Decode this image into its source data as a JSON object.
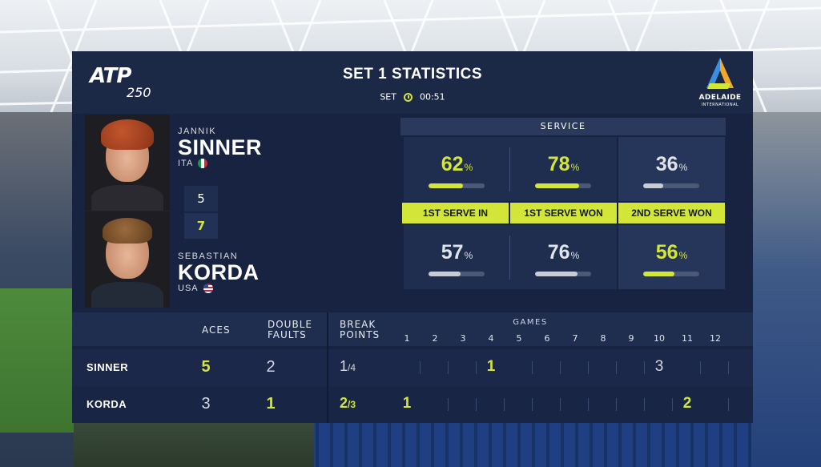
{
  "header": {
    "event_logo": "ATP",
    "event_level": "250",
    "title": "SET 1 STATISTICS",
    "set_label": "SET",
    "set_time": "00:51",
    "clock_icon": "clock-icon",
    "tournament_logo": "ADELAIDE",
    "tournament_sub": "INTERNATIONAL"
  },
  "players": [
    {
      "first": "JANNIK",
      "last": "SINNER",
      "country": "ITA",
      "flag": "italy-flag-icon",
      "set_score": "5"
    },
    {
      "first": "SEBASTIAN",
      "last": "KORDA",
      "country": "USA",
      "flag": "usa-flag-icon",
      "set_score": "7"
    }
  ],
  "service": {
    "header": "SERVICE",
    "labels": [
      "1ST SERVE IN",
      "1ST SERVE WON",
      "2ND SERVE WON"
    ],
    "player1": [
      {
        "value": "62",
        "unit": "%",
        "fraction": 0.62,
        "highlight": true
      },
      {
        "value": "78",
        "unit": "%",
        "fraction": 0.78,
        "highlight": true
      },
      {
        "value": "36",
        "unit": "%",
        "fraction": 0.36,
        "highlight": false
      }
    ],
    "player2": [
      {
        "value": "57",
        "unit": "%",
        "fraction": 0.57,
        "highlight": false
      },
      {
        "value": "76",
        "unit": "%",
        "fraction": 0.76,
        "highlight": false
      },
      {
        "value": "56",
        "unit": "%",
        "fraction": 0.56,
        "highlight": true
      }
    ]
  },
  "summary": {
    "aces_label": "ACES",
    "double_faults_label": [
      "DOUBLE",
      "FAULTS"
    ],
    "break_points_label": [
      "BREAK",
      "POINTS"
    ],
    "games_label": "GAMES",
    "game_numbers": [
      "1",
      "2",
      "3",
      "4",
      "5",
      "6",
      "7",
      "8",
      "9",
      "10",
      "11",
      "12"
    ],
    "rows": [
      {
        "name": "SINNER",
        "aces": "5",
        "double_faults": "2",
        "bp_won": "1",
        "bp_total": "/4",
        "games": [
          "",
          "",
          "",
          "1",
          "",
          "",
          "",
          "",
          "",
          "3",
          "",
          ""
        ]
      },
      {
        "name": "KORDA",
        "aces": "3",
        "double_faults": "1",
        "bp_won": "2",
        "bp_total": "/3",
        "games": [
          "1",
          "",
          "",
          "",
          "",
          "",
          "",
          "",
          "",
          "",
          "2",
          ""
        ]
      }
    ]
  },
  "colors": {
    "accent": "#d4e53a",
    "panel": "#172341"
  }
}
